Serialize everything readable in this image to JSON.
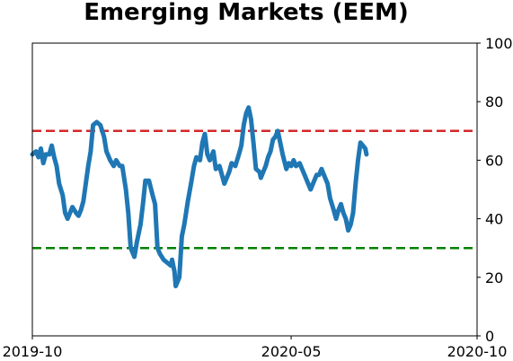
{
  "chart_data": {
    "type": "line",
    "title": "Emerging Markets (EEM)",
    "xlabel": "",
    "ylabel": "",
    "x_range": [
      "2019-10-01",
      "2020-10-01"
    ],
    "x_ticks": [
      {
        "date": "2019-10-01",
        "label": "2019-10"
      },
      {
        "date": "2020-05-01",
        "label": "2020-05"
      },
      {
        "date": "2020-10-01",
        "label": "2020-10"
      }
    ],
    "ylim": [
      0,
      100
    ],
    "y_ticks": [
      0,
      20,
      40,
      60,
      80,
      100
    ],
    "y_axis_side": "right",
    "grid": false,
    "legend": "none",
    "reference_lines": [
      {
        "y": 70,
        "color": "#d62728",
        "style": "dashed"
      },
      {
        "y": 30,
        "color": "#008000",
        "style": "dashed"
      }
    ],
    "series": [
      {
        "color": "#1f77b4",
        "points": [
          [
            "2019-10-01",
            62
          ],
          [
            "2019-10-04",
            63
          ],
          [
            "2019-10-06",
            61
          ],
          [
            "2019-10-08",
            64
          ],
          [
            "2019-10-10",
            59
          ],
          [
            "2019-10-12",
            62
          ],
          [
            "2019-10-15",
            62
          ],
          [
            "2019-10-17",
            65
          ],
          [
            "2019-10-19",
            61
          ],
          [
            "2019-10-21",
            58
          ],
          [
            "2019-10-23",
            52
          ],
          [
            "2019-10-26",
            48
          ],
          [
            "2019-10-28",
            42
          ],
          [
            "2019-10-30",
            40
          ],
          [
            "2019-11-01",
            42
          ],
          [
            "2019-11-03",
            44
          ],
          [
            "2019-11-06",
            42
          ],
          [
            "2019-11-08",
            41
          ],
          [
            "2019-11-10",
            43
          ],
          [
            "2019-11-12",
            46
          ],
          [
            "2019-11-14",
            52
          ],
          [
            "2019-11-16",
            58
          ],
          [
            "2019-11-18",
            63
          ],
          [
            "2019-11-20",
            72
          ],
          [
            "2019-11-23",
            73
          ],
          [
            "2019-11-26",
            72
          ],
          [
            "2019-11-29",
            68
          ],
          [
            "2019-12-01",
            63
          ],
          [
            "2019-12-04",
            60
          ],
          [
            "2019-12-07",
            58
          ],
          [
            "2019-12-09",
            60
          ],
          [
            "2019-12-12",
            58
          ],
          [
            "2019-12-14",
            58
          ],
          [
            "2019-12-17",
            50
          ],
          [
            "2019-12-19",
            42
          ],
          [
            "2019-12-21",
            30
          ],
          [
            "2019-12-24",
            27
          ],
          [
            "2019-12-26",
            32
          ],
          [
            "2019-12-29",
            38
          ],
          [
            "2019-12-31",
            45
          ],
          [
            "2020-01-02",
            53
          ],
          [
            "2020-01-05",
            53
          ],
          [
            "2020-01-08",
            48
          ],
          [
            "2020-01-10",
            45
          ],
          [
            "2020-01-12",
            30
          ],
          [
            "2020-01-14",
            28
          ],
          [
            "2020-01-17",
            26
          ],
          [
            "2020-01-20",
            25
          ],
          [
            "2020-01-23",
            24
          ],
          [
            "2020-01-24",
            26
          ],
          [
            "2020-01-26",
            22
          ],
          [
            "2020-01-27",
            17
          ],
          [
            "2020-01-30",
            20
          ],
          [
            "2020-02-01",
            34
          ],
          [
            "2020-02-03",
            38
          ],
          [
            "2020-02-06",
            46
          ],
          [
            "2020-02-09",
            53
          ],
          [
            "2020-02-11",
            58
          ],
          [
            "2020-02-13",
            61
          ],
          [
            "2020-02-16",
            60
          ],
          [
            "2020-02-18",
            66
          ],
          [
            "2020-02-20",
            69
          ],
          [
            "2020-02-22",
            62
          ],
          [
            "2020-02-24",
            60
          ],
          [
            "2020-02-27",
            63
          ],
          [
            "2020-02-29",
            57
          ],
          [
            "2020-03-03",
            58
          ],
          [
            "2020-03-05",
            55
          ],
          [
            "2020-03-07",
            52
          ],
          [
            "2020-03-09",
            54
          ],
          [
            "2020-03-11",
            56
          ],
          [
            "2020-03-13",
            59
          ],
          [
            "2020-03-16",
            58
          ],
          [
            "2020-03-19",
            62
          ],
          [
            "2020-03-21",
            65
          ],
          [
            "2020-03-23",
            72
          ],
          [
            "2020-03-25",
            76
          ],
          [
            "2020-03-27",
            78
          ],
          [
            "2020-03-29",
            74
          ],
          [
            "2020-03-31",
            66
          ],
          [
            "2020-04-02",
            57
          ],
          [
            "2020-04-05",
            56
          ],
          [
            "2020-04-06",
            54
          ],
          [
            "2020-04-08",
            56
          ],
          [
            "2020-04-10",
            58
          ],
          [
            "2020-04-12",
            61
          ],
          [
            "2020-04-14",
            63
          ],
          [
            "2020-04-16",
            67
          ],
          [
            "2020-04-18",
            68
          ],
          [
            "2020-04-20",
            70
          ],
          [
            "2020-04-22",
            66
          ],
          [
            "2020-04-24",
            62
          ],
          [
            "2020-04-27",
            57
          ],
          [
            "2020-04-29",
            59
          ],
          [
            "2020-05-01",
            58
          ],
          [
            "2020-05-03",
            60
          ],
          [
            "2020-05-05",
            58
          ],
          [
            "2020-05-08",
            59
          ],
          [
            "2020-05-10",
            57
          ],
          [
            "2020-05-12",
            55
          ],
          [
            "2020-05-15",
            52
          ],
          [
            "2020-05-17",
            50
          ],
          [
            "2020-05-19",
            52
          ],
          [
            "2020-05-22",
            55
          ],
          [
            "2020-05-24",
            55
          ],
          [
            "2020-05-26",
            57
          ],
          [
            "2020-05-29",
            54
          ],
          [
            "2020-05-31",
            52
          ],
          [
            "2020-06-02",
            47
          ],
          [
            "2020-06-05",
            43
          ],
          [
            "2020-06-07",
            40
          ],
          [
            "2020-06-09",
            43
          ],
          [
            "2020-06-11",
            45
          ],
          [
            "2020-06-13",
            42
          ],
          [
            "2020-06-15",
            40
          ],
          [
            "2020-06-17",
            36
          ],
          [
            "2020-06-19",
            38
          ],
          [
            "2020-06-21",
            42
          ],
          [
            "2020-06-23",
            52
          ],
          [
            "2020-06-25",
            60
          ],
          [
            "2020-06-27",
            66
          ],
          [
            "2020-06-29",
            65
          ],
          [
            "2020-07-01",
            64
          ],
          [
            "2020-07-02",
            62
          ]
        ]
      }
    ]
  }
}
